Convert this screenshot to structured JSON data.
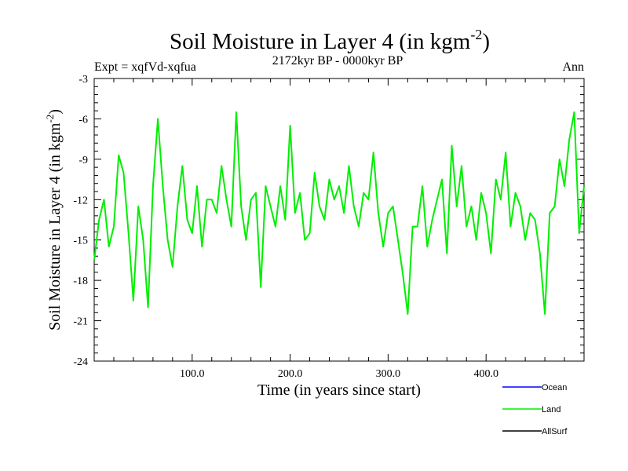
{
  "chart_data": {
    "type": "line",
    "title": "Soil Moisture in Layer 4 (in kgm",
    "title_sup": "-2",
    "title_close": ")",
    "subtitle": "2172kyr BP - 0000kyr BP",
    "experiment": "Expt = xqfVd-xqfua",
    "season": "Ann",
    "xlabel": "Time (in years since start)",
    "ylabel": "Soil Moisture in Layer 4 (in kgm",
    "ylabel_sup": "-2",
    "ylabel_close": ")",
    "xlim": [
      0,
      500
    ],
    "ylim": [
      -24,
      -3
    ],
    "x_ticks": [
      100,
      200,
      300,
      400
    ],
    "x_tick_labels": [
      "100.0",
      "200.0",
      "300.0",
      "400.0"
    ],
    "y_ticks": [
      -3,
      -6,
      -9,
      -12,
      -15,
      -18,
      -21,
      -24
    ],
    "y_tick_labels": [
      "-3",
      "-6",
      "-9",
      "-12",
      "-15",
      "-18",
      "-21",
      "-24"
    ],
    "legend": [
      {
        "name": "Ocean",
        "color": "#0000ff"
      },
      {
        "name": "Land",
        "color": "#00ee00"
      },
      {
        "name": "AllSurf",
        "color": "#000000"
      }
    ],
    "series": [
      {
        "name": "Land",
        "color": "#00ee00",
        "x": [
          0,
          5,
          10,
          15,
          20,
          25,
          30,
          35,
          40,
          45,
          50,
          55,
          60,
          65,
          70,
          75,
          80,
          85,
          90,
          95,
          100,
          105,
          110,
          115,
          120,
          125,
          130,
          135,
          140,
          145,
          150,
          155,
          160,
          165,
          170,
          175,
          180,
          185,
          190,
          195,
          200,
          205,
          210,
          215,
          220,
          225,
          230,
          235,
          240,
          245,
          250,
          255,
          260,
          265,
          270,
          275,
          280,
          285,
          290,
          295,
          300,
          305,
          310,
          315,
          320,
          325,
          330,
          335,
          340,
          345,
          350,
          355,
          360,
          365,
          370,
          375,
          380,
          385,
          390,
          395,
          400,
          405,
          410,
          415,
          420,
          425,
          430,
          435,
          440,
          445,
          450,
          455,
          460,
          465,
          470,
          475,
          480,
          485,
          490,
          495,
          500
        ],
        "values": [
          -16.5,
          -13.5,
          -12.0,
          -15.5,
          -14.0,
          -8.7,
          -10.0,
          -14.5,
          -19.5,
          -12.5,
          -15.0,
          -20.0,
          -11.0,
          -6.0,
          -11.0,
          -15.0,
          -17.0,
          -12.5,
          -9.5,
          -13.5,
          -14.5,
          -11.0,
          -15.5,
          -12.0,
          -12.0,
          -13.0,
          -9.5,
          -12.0,
          -14.0,
          -5.5,
          -12.5,
          -15.0,
          -12.0,
          -11.5,
          -18.5,
          -11.0,
          -12.5,
          -14.0,
          -11.0,
          -13.5,
          -6.5,
          -13.0,
          -11.5,
          -15.0,
          -14.5,
          -10.0,
          -12.5,
          -13.5,
          -10.5,
          -12.0,
          -11.0,
          -13.0,
          -9.5,
          -12.5,
          -14.0,
          -11.5,
          -12.0,
          -8.5,
          -13.0,
          -15.5,
          -13.0,
          -12.5,
          -15.0,
          -17.5,
          -20.5,
          -14.0,
          -14.0,
          -11.0,
          -15.5,
          -13.5,
          -12.0,
          -10.5,
          -16.0,
          -8.0,
          -12.5,
          -9.5,
          -14.0,
          -12.5,
          -15.0,
          -11.5,
          -13.0,
          -16.0,
          -10.5,
          -12.0,
          -8.5,
          -14.0,
          -11.5,
          -12.5,
          -15.0,
          -13.0,
          -13.5,
          -16.0,
          -20.5,
          -13.0,
          -12.5,
          -9.0,
          -11.0,
          -7.5,
          -5.5,
          -14.5,
          -11.0
        ]
      }
    ]
  }
}
